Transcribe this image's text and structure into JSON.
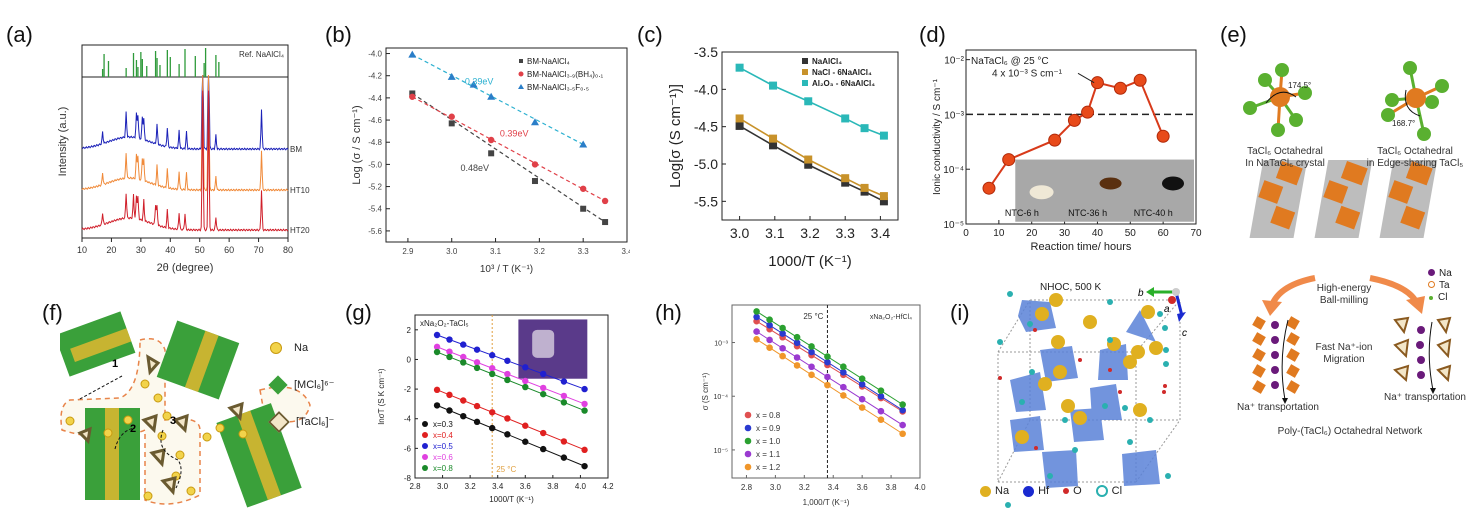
{
  "panel_labels": [
    "(a)",
    "(b)",
    "(c)",
    "(d)",
    "(e)",
    "(f)",
    "(g)",
    "(h)",
    "(i)"
  ],
  "chart_data": [
    {
      "id": "a",
      "type": "line",
      "title": "",
      "xlabel": "2θ (degree)",
      "ylabel": "Intensity (a.u.)",
      "xlim": [
        10,
        80
      ],
      "xticks": [
        10,
        20,
        30,
        40,
        50,
        60,
        70,
        80
      ],
      "reference_label": "Ref. NaAlCl₄",
      "reference_color": "#2e9a3a",
      "reference_peaks": [
        17,
        17.5,
        19,
        25,
        27.5,
        28.5,
        29,
        30,
        30.5,
        32,
        35,
        35.5,
        36.5,
        39,
        40,
        43,
        45,
        48.5,
        51.5,
        52,
        55.5,
        56.5
      ],
      "series": [
        {
          "name": "BM",
          "color": "#1c22b8",
          "peaks": [
            17,
            25,
            28.5,
            29,
            30.5,
            31,
            35.5,
            39,
            43,
            45.5,
            51,
            53,
            55.5,
            71
          ]
        },
        {
          "name": "HT100",
          "color": "#f08a3a",
          "peaks": [
            17,
            25,
            28.5,
            29,
            30.5,
            31,
            35.5,
            39,
            43,
            45.5,
            51,
            53,
            55.5,
            71
          ]
        },
        {
          "name": "HT200",
          "color": "#d01f2a",
          "peaks": [
            17,
            25,
            27.5,
            28.5,
            29,
            31,
            35,
            35.5,
            39,
            43,
            45,
            51,
            53,
            55.5,
            71
          ]
        }
      ]
    },
    {
      "id": "b",
      "type": "scatter",
      "xlabel": "10³ / T (K⁻¹)",
      "ylabel": "Log (σ / S cm⁻¹)",
      "xlim": [
        2.85,
        3.4
      ],
      "ylim": [
        -5.7,
        -3.95
      ],
      "xticks": [
        2.9,
        3.0,
        3.1,
        3.2,
        3.3,
        3.4
      ],
      "yticks": [
        -4.0,
        -4.2,
        -4.4,
        -4.6,
        -4.8,
        -5.0,
        -5.2,
        -5.4,
        -5.6
      ],
      "legend_position": "top-right",
      "series": [
        {
          "name": "BM-NaAlCl₄",
          "color": "#444444",
          "marker": "square",
          "annotation": "0.48eV",
          "x": [
            2.91,
            3.0,
            3.09,
            3.19,
            3.3,
            3.35
          ],
          "y": [
            -4.36,
            -4.63,
            -4.9,
            -5.15,
            -5.4,
            -5.52
          ]
        },
        {
          "name": "BM-NaAlCl₃.₉(BH₄)₀.₁",
          "color": "#e04048",
          "marker": "circle",
          "annotation": "0.39eV",
          "x": [
            2.91,
            3.0,
            3.09,
            3.19,
            3.3,
            3.35
          ],
          "y": [
            -4.39,
            -4.57,
            -4.78,
            -5.0,
            -5.22,
            -5.33
          ]
        },
        {
          "name": "BM-NaAlCl₃.₅F₀.₅",
          "color": "#2a7ec8",
          "marker": "triangle",
          "annotation": "0.39eV",
          "annotation_color": "#2bb0d0",
          "x": [
            2.91,
            3.0,
            3.05,
            3.09,
            3.19,
            3.3
          ],
          "y": [
            -4.01,
            -4.21,
            -4.28,
            -4.39,
            -4.62,
            -4.82
          ]
        }
      ]
    },
    {
      "id": "c",
      "type": "line",
      "xlabel": "1000/T (K⁻¹)",
      "ylabel": "Log[σ (S cm⁻¹)]",
      "xlim": [
        2.95,
        3.45
      ],
      "ylim": [
        -5.75,
        -3.5
      ],
      "xticks": [
        3.0,
        3.1,
        3.2,
        3.3,
        3.4
      ],
      "yticks": [
        -3.5,
        -4.0,
        -4.5,
        -5.0,
        -5.5
      ],
      "legend_position": "top-right",
      "series": [
        {
          "name": "NaAlCl₄",
          "color": "#333333",
          "x": [
            3.0,
            3.095,
            3.195,
            3.3,
            3.355,
            3.41
          ],
          "y": [
            -4.49,
            -4.75,
            -5.01,
            -5.25,
            -5.37,
            -5.5
          ]
        },
        {
          "name": "NaCl - 6NaAlCl₄",
          "color": "#c8922a",
          "x": [
            3.0,
            3.095,
            3.195,
            3.3,
            3.355,
            3.41
          ],
          "y": [
            -4.39,
            -4.66,
            -4.94,
            -5.19,
            -5.32,
            -5.43
          ]
        },
        {
          "name": "Al₂O₃ - 6NaAlCl₄",
          "color": "#2ab8b8",
          "x": [
            3.0,
            3.095,
            3.195,
            3.3,
            3.355,
            3.41
          ],
          "y": [
            -3.71,
            -3.95,
            -4.16,
            -4.39,
            -4.52,
            -4.62
          ]
        }
      ]
    },
    {
      "id": "d",
      "type": "line",
      "title": "NaTaCl₆ @ 25 °C",
      "xlabel": "Reaction time/ hours",
      "ylabel": "Ionic conductivity / S cm⁻¹",
      "yscale": "log",
      "xlim": [
        0,
        70
      ],
      "ylim": [
        1e-05,
        0.015
      ],
      "xticks": [
        0,
        10,
        20,
        30,
        40,
        50,
        60,
        70
      ],
      "ytick_labels": [
        "10⁻⁵",
        "10⁻⁴",
        "10⁻³",
        "10⁻²"
      ],
      "reference_line": 0.001,
      "annotation": "4 x 10⁻³ S cm⁻¹",
      "series": [
        {
          "name": "NaTaCl₆",
          "color": "#e84a1a",
          "x": [
            7,
            13,
            27,
            33,
            37,
            40,
            47,
            53,
            60
          ],
          "y": [
            4.5e-05,
            0.00015,
            0.00034,
            0.00078,
            0.0011,
            0.0038,
            0.003,
            0.0042,
            0.0004
          ]
        }
      ],
      "inset_labels": [
        "NTC-6 h",
        "NTC-36 h",
        "NTC-40 h"
      ]
    },
    {
      "id": "g",
      "type": "line",
      "title": "xNa₂O₂-TaCl₅",
      "xlabel": "1000/T (K⁻¹)",
      "ylabel": "lnσT (S K cm⁻¹)",
      "xlim": [
        2.8,
        4.2
      ],
      "ylim": [
        -8,
        3
      ],
      "xticks": [
        2.8,
        3.0,
        3.2,
        3.4,
        3.6,
        3.8,
        4.0,
        4.2
      ],
      "yticks": [
        2,
        0,
        -2,
        -4,
        -6,
        -8
      ],
      "reference_line_x": 3.36,
      "reference_label": "25 °C",
      "legend_position": "bottom-left",
      "series": [
        {
          "name": "x=0.3",
          "color": "#111111",
          "x0": 2.96,
          "y0": -3.1,
          "x1": 4.03,
          "y1": -7.2
        },
        {
          "name": "x=0.4",
          "color": "#e02020",
          "x0": 2.96,
          "y0": -2.05,
          "x1": 4.03,
          "y1": -6.1
        },
        {
          "name": "x=0.5",
          "color": "#2020d0",
          "x0": 2.96,
          "y0": 1.65,
          "x1": 4.03,
          "y1": -2.0
        },
        {
          "name": "x=0.6",
          "color": "#e040e0",
          "x0": 2.96,
          "y0": 0.85,
          "x1": 4.03,
          "y1": -3.0
        },
        {
          "name": "x=0.8",
          "color": "#1a8a2a",
          "x0": 2.96,
          "y0": 0.5,
          "x1": 4.03,
          "y1": -3.45
        }
      ],
      "x_points": [
        2.96,
        3.05,
        3.15,
        3.25,
        3.36,
        3.47,
        3.6,
        3.73,
        3.88,
        4.03
      ]
    },
    {
      "id": "h",
      "type": "line",
      "title": "xNa₂O₂-HfCl₄",
      "xlabel": "1,000/T (K⁻¹)",
      "ylabel": "σ (S cm⁻¹)",
      "yscale": "log",
      "xlim": [
        2.7,
        4.0
      ],
      "ylim": [
        3e-06,
        0.005
      ],
      "xticks": [
        2.8,
        3.0,
        3.2,
        3.4,
        3.6,
        3.8,
        4.0
      ],
      "ytick_labels": [
        "10⁻³",
        "10⁻⁴",
        "10⁻⁵"
      ],
      "reference_line_x": 3.36,
      "reference_label": "25 °C",
      "legend_position": "bottom-left",
      "series": [
        {
          "name": "x = 0.8",
          "color": "#e05050",
          "y0": 0.0025,
          "y1": 5.2e-05
        },
        {
          "name": "x = 0.9",
          "color": "#2a3ad0",
          "y0": 0.003,
          "y1": 5.5e-05
        },
        {
          "name": "x = 1.0",
          "color": "#2aa030",
          "y0": 0.0038,
          "y1": 7e-05
        },
        {
          "name": "x = 1.1",
          "color": "#9a3ad0",
          "y0": 0.0016,
          "y1": 2.9e-05
        },
        {
          "name": "x = 1.2",
          "color": "#f0962a",
          "y0": 0.00115,
          "y1": 2e-05
        }
      ],
      "x_points": [
        2.87,
        2.96,
        3.05,
        3.15,
        3.25,
        3.36,
        3.47,
        3.6,
        3.73,
        3.88
      ]
    }
  ],
  "panel_e": {
    "caption_left_1": "TaCl₆ Octahedral",
    "caption_left_2": "In NaTaCl₆ crystal",
    "angle_left": "174.5°",
    "caption_right_1": "TaCl₆ Octahedral",
    "caption_right_2": "in Edge-sharing TaCl₅",
    "angle_right": "168.7°",
    "process_1": "High-energy",
    "process_2": "Ball-milling",
    "migration_1": "Fast Na⁺-ion",
    "migration_2": "Migration",
    "transport_left": "Na⁺ transportation",
    "transport_right": "Na⁺ transportation",
    "footer": "Poly-(TaCl₆) Octahedral Network",
    "legend": [
      {
        "label": "Na",
        "color": "#6a1a7a"
      },
      {
        "label": "Ta",
        "color": "#e07a20"
      },
      {
        "label": "Cl",
        "color": "#5ab030"
      }
    ]
  },
  "panel_f": {
    "legend": [
      {
        "label": "Na",
        "icon": "na-sphere-icon"
      },
      {
        "label": "[MCl₆]⁶⁻",
        "icon": "mcl6-octahedron-icon"
      },
      {
        "label": "[TaCl₆]⁻",
        "icon": "tacl6-octahedron-icon"
      }
    ],
    "path_labels": [
      "1",
      "2",
      "3"
    ]
  },
  "panel_i": {
    "title": "NHOC, 500 K",
    "axes": [
      "b",
      "a",
      "c"
    ],
    "legend": [
      {
        "label": "Na",
        "color": "#e0b020"
      },
      {
        "label": "Hf",
        "color": "#1a2ad0"
      },
      {
        "label": "O",
        "color": "#d02a2a"
      },
      {
        "label": "Cl",
        "color": "#2ab0b0"
      }
    ]
  }
}
